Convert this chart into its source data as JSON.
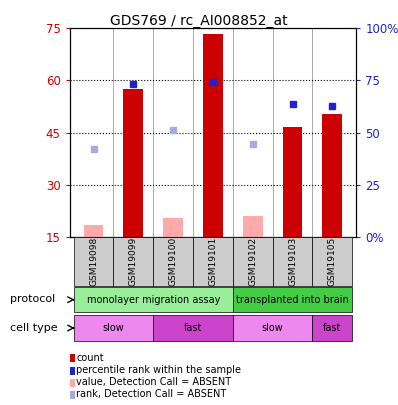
{
  "title": "GDS769 / rc_AI008852_at",
  "samples": [
    "GSM19098",
    "GSM19099",
    "GSM19100",
    "GSM19101",
    "GSM19102",
    "GSM19103",
    "GSM19105"
  ],
  "count_values": [
    null,
    57.5,
    null,
    73.5,
    null,
    46.5,
    50.5
  ],
  "count_absent_values": [
    18.5,
    null,
    20.5,
    null,
    21.0,
    null,
    null
  ],
  "rank_pct": [
    null,
    73.5,
    null,
    74.5,
    null,
    63.5,
    63.0
  ],
  "rank_absent_pct": [
    42.0,
    null,
    51.5,
    null,
    44.5,
    null,
    null
  ],
  "ylim": [
    15,
    75
  ],
  "yticks_left": [
    15,
    30,
    45,
    60,
    75
  ],
  "yticks_right": [
    0,
    25,
    50,
    75,
    100
  ],
  "yright_labels": [
    "0%",
    "25",
    "50",
    "75",
    "100%"
  ],
  "bar_color": "#cc0000",
  "absent_bar_color": "#ffaaaa",
  "rank_color": "#2222cc",
  "rank_absent_color": "#aaaadd",
  "protocol_groups": [
    {
      "label": "monolayer migration assay",
      "cols": [
        0,
        1,
        2,
        3
      ],
      "color": "#99ee99"
    },
    {
      "label": "transplanted into brain",
      "cols": [
        4,
        5,
        6
      ],
      "color": "#44cc44"
    }
  ],
  "cell_type_groups": [
    {
      "label": "slow",
      "cols": [
        0,
        1
      ],
      "color": "#ee88ee"
    },
    {
      "label": "fast",
      "cols": [
        2,
        3
      ],
      "color": "#cc44cc"
    },
    {
      "label": "slow",
      "cols": [
        4,
        5
      ],
      "color": "#ee88ee"
    },
    {
      "label": "fast",
      "cols": [
        6
      ],
      "color": "#cc44cc"
    }
  ],
  "protocol_label": "protocol",
  "celltype_label": "cell type",
  "legend_items": [
    {
      "label": "count",
      "color": "#cc0000"
    },
    {
      "label": "percentile rank within the sample",
      "color": "#2222cc"
    },
    {
      "label": "value, Detection Call = ABSENT",
      "color": "#ffaaaa"
    },
    {
      "label": "rank, Detection Call = ABSENT",
      "color": "#aaaadd"
    }
  ],
  "axis_left_color": "#cc0000",
  "axis_right_color": "#2222cc",
  "bar_width": 0.5,
  "sample_bg_color": "#cccccc"
}
